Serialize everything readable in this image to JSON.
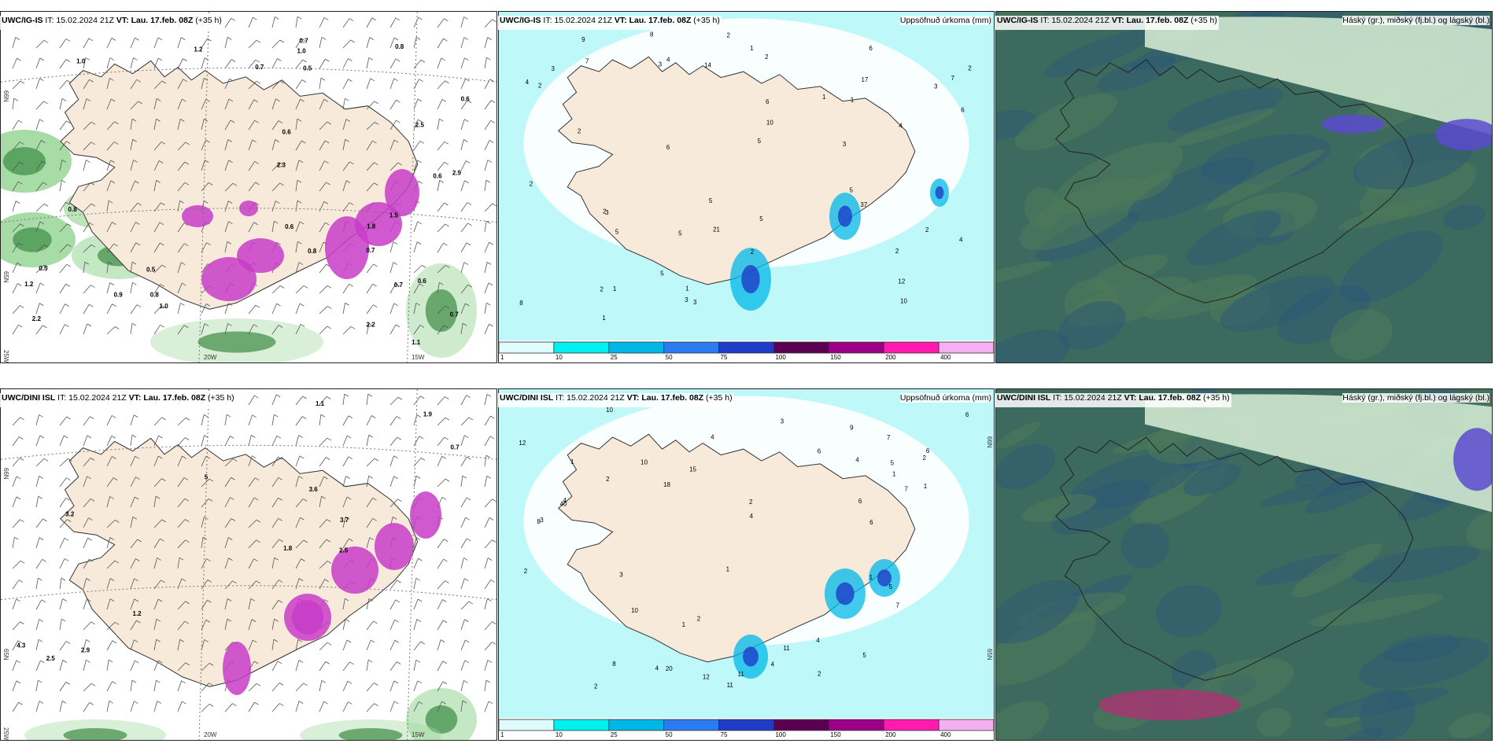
{
  "panels": [
    {
      "model": "UWC/IG-IS",
      "it": "IT: 15.02.2024 21Z",
      "vt_label": "VT:",
      "vt": "Lau. 17.feb. 08Z",
      "lead": "(+35 h)",
      "right_title": "",
      "kind": "wind",
      "labels": [
        "1.0",
        "1.0",
        "0.8",
        "0.7",
        "0.8",
        "1.2",
        "0.5",
        "1.0",
        "0.6",
        "0.7",
        "0.6",
        "0.9",
        "0.6",
        "0.6",
        "0.7",
        "0.5",
        "0.7",
        "0.8",
        "0.8",
        "0.7",
        "0.5",
        "0.6",
        "1.2",
        "2.2",
        "2.5",
        "2.9",
        "2.3",
        "2.2",
        "1.1",
        "1.5",
        "1.8"
      ],
      "coords": [
        "66N",
        "65N",
        "25W",
        "20W",
        "15W"
      ]
    },
    {
      "model": "UWC/IG-IS",
      "it": "IT: 15.02.2024 21Z",
      "vt_label": "VT:",
      "vt": "Lau. 17.feb. 08Z",
      "lead": "(+35 h)",
      "right_title": "Uppsöfnuð úrkoma (mm)",
      "kind": "precip",
      "labels": [
        "4",
        "2",
        "5",
        "1",
        "2",
        "2",
        "3",
        "3",
        "2",
        "5",
        "1",
        "6",
        "2",
        "3",
        "12",
        "6",
        "5",
        "3",
        "4",
        "10",
        "5",
        "4",
        "3",
        "2",
        "8",
        "21",
        "17",
        "37",
        "1",
        "8",
        "5",
        "6",
        "7",
        "4",
        "5",
        "1",
        "3",
        "2",
        "14",
        "2",
        "3",
        "2",
        "10",
        "6",
        "2",
        "7",
        "5",
        "1",
        "1",
        "2",
        "9"
      ],
      "coords": []
    },
    {
      "model": "UWC/IG-IS",
      "it": "IT: 15.02.2024 21Z",
      "vt_label": "VT:",
      "vt": "Lau. 17.feb. 08Z",
      "lead": "(+35 h)",
      "right_title": "Háský (gr.), miðský (fj.bl.) og lágský (bl.)",
      "kind": "cloud",
      "labels": [],
      "coords": []
    },
    {
      "model": "UWC/DINI ISL",
      "it": "IT: 15.02.2024 21Z",
      "vt_label": "VT:",
      "vt": "Lau. 17.feb. 08Z",
      "lead": "(+35 h)",
      "right_title": "",
      "kind": "wind",
      "labels": [
        "1.1",
        "1.2",
        "2.9",
        "2.5",
        "3.6",
        "5",
        "3.7",
        "4.3",
        "3.2",
        "1.9",
        "2.5",
        "1.8",
        "0.7"
      ],
      "coords": [
        "66N",
        "65N",
        "25W",
        "20W",
        "15W"
      ]
    },
    {
      "model": "UWC/DINI ISL",
      "it": "IT: 15.02.2024 21Z",
      "vt_label": "VT:",
      "vt": "Lau. 17.feb. 08Z",
      "lead": "(+35 h)",
      "right_title": "Uppsöfnuð úrkoma (mm)",
      "kind": "precip",
      "labels": [
        "1",
        "2",
        "3",
        "2",
        "4",
        "4",
        "6",
        "6",
        "11",
        "40",
        "1",
        "4",
        "2",
        "1",
        "4",
        "2",
        "3",
        "2",
        "5",
        "1",
        "1",
        "2",
        "12",
        "7",
        "10",
        "11",
        "15",
        "18",
        "20",
        "5",
        "8",
        "10",
        "11",
        "6",
        "6",
        "4",
        "5",
        "7",
        "9",
        "4",
        "3",
        "12",
        "10",
        "6",
        "7",
        "8",
        "2",
        "4",
        "1"
      ],
      "coords": [
        "66N",
        "65N"
      ]
    },
    {
      "model": "UWC/DINI ISL",
      "it": "IT: 15.02.2024 21Z",
      "vt_label": "VT:",
      "vt": "Lau. 17.feb. 08Z",
      "lead": "(+35 h)",
      "right_title": "Háský (gr.), miðský (fj.bl.) og lágský (bl.)",
      "kind": "cloud",
      "labels": [],
      "coords": []
    }
  ],
  "colorbar": {
    "ticks": [
      "1",
      "10",
      "25",
      "50",
      "75",
      "100",
      "150",
      "200",
      "400"
    ],
    "colors": [
      "#dffbfb",
      "#00f0f0",
      "#00b8e8",
      "#2a7cf0",
      "#1e3cc8",
      "#5a0050",
      "#9c0088",
      "#ff1ab0",
      "#f4b0f0"
    ]
  },
  "colors": {
    "land": "#f7eadb",
    "sea_precip_light": "#bff8f8",
    "wind_green": "#9fd89c",
    "wind_green_dark": "#3c8c45",
    "magenta": "#c83cc8",
    "cloud_base": "#3c6a5e",
    "cloud_mid": "#2d5a74",
    "cloud_high": "#cfe8d0"
  }
}
